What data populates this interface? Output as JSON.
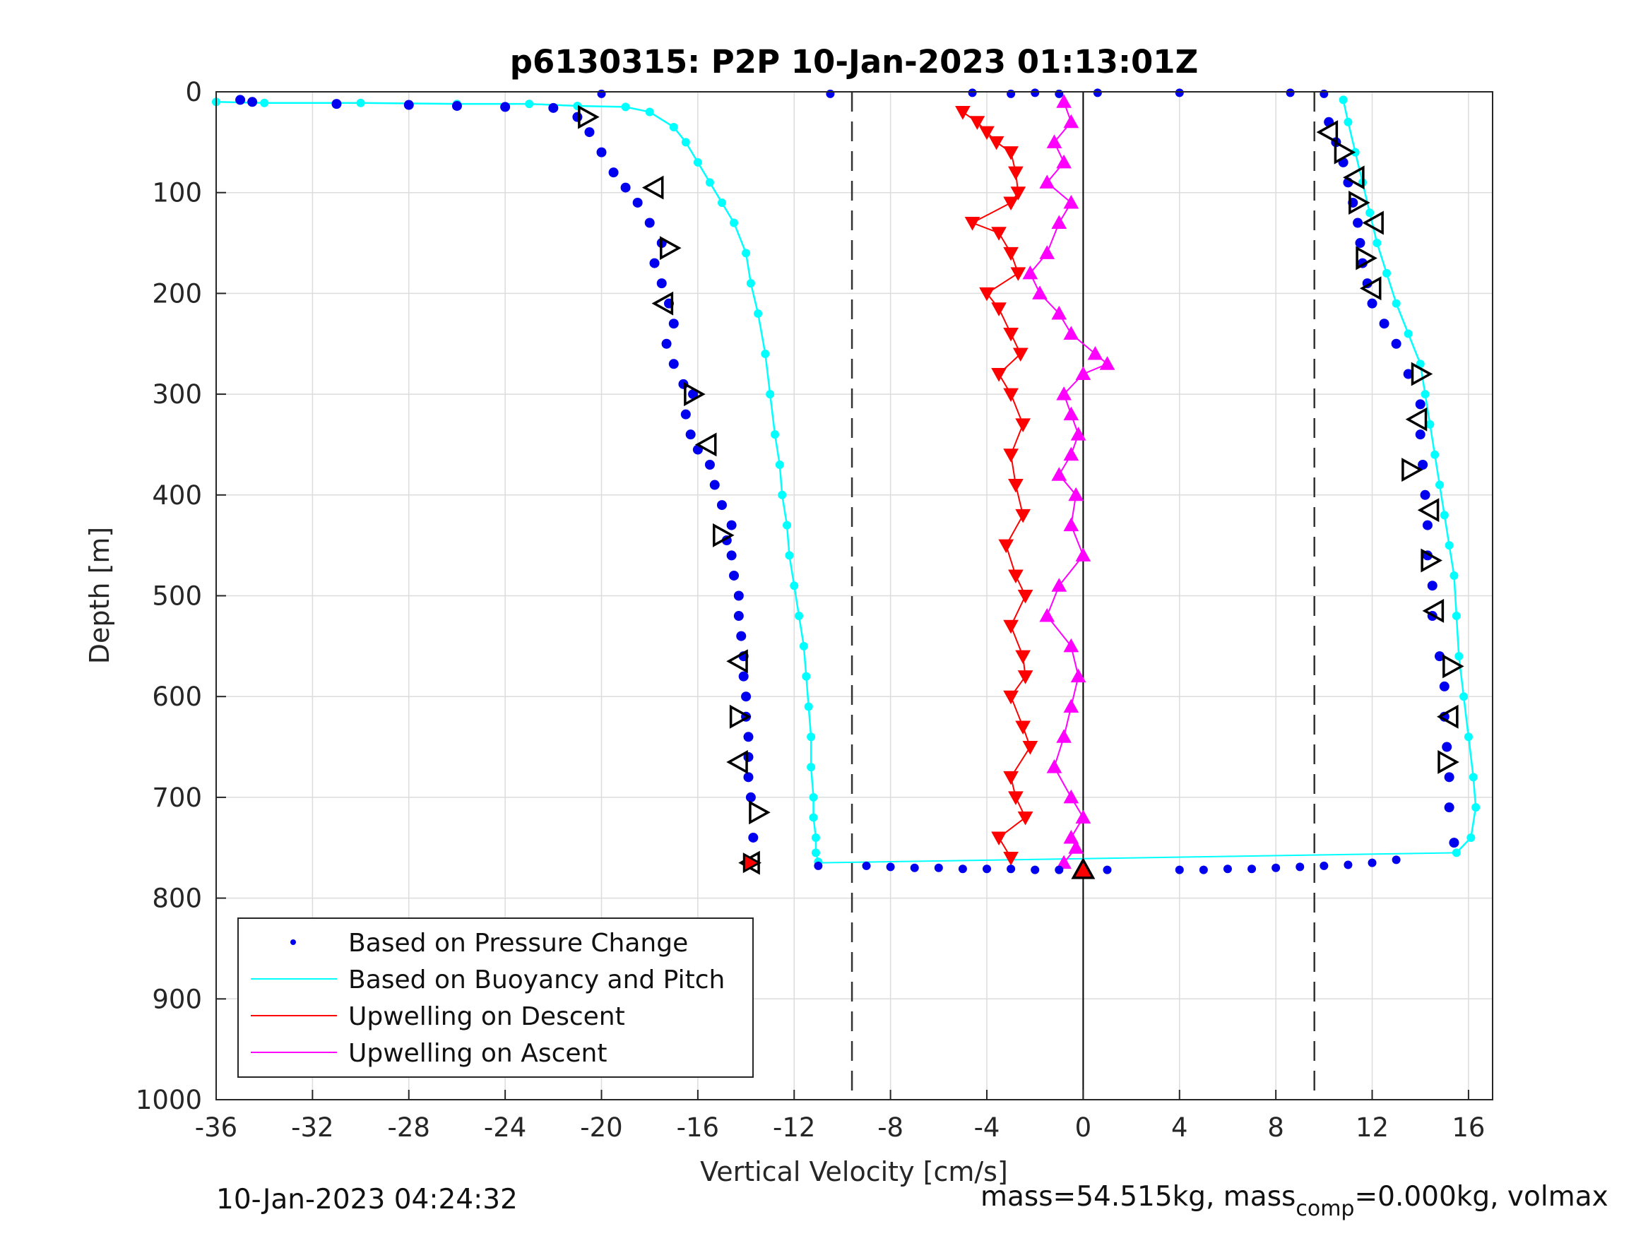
{
  "chart_data": {
    "type": "scatter",
    "title": "p6130315: P2P 10-Jan-2023 01:13:01Z",
    "xlabel": "Vertical Velocity [cm/s]",
    "ylabel": "Depth [m]",
    "xlim": [
      -36,
      17
    ],
    "ylim": [
      0,
      1000
    ],
    "y_reversed": true,
    "x_ticks": [
      "-36",
      "-32",
      "-28",
      "-24",
      "-20",
      "-16",
      "-12",
      "-8",
      "-4",
      "0",
      "4",
      "8",
      "12",
      "16"
    ],
    "y_ticks": [
      "0",
      "100",
      "200",
      "300",
      "400",
      "500",
      "600",
      "700",
      "800",
      "900",
      "1000"
    ],
    "grid": true,
    "legend_position": "bottom-left",
    "reference_lines": {
      "dashed_x": [
        -9.6,
        9.6
      ],
      "solid_x": [
        0
      ]
    },
    "series": [
      {
        "name": "Based on Pressure Change",
        "color": "#0000ee",
        "marker": "dot",
        "descent": {
          "x": [
            -35,
            -34.5,
            -31,
            -28,
            -26,
            -24,
            -22,
            -21,
            -20.5,
            -20,
            -19.5,
            -19,
            -18.5,
            -18,
            -17.5,
            -17.8,
            -17.5,
            -17.2,
            -17,
            -17.3,
            -17,
            -16.6,
            -16.2,
            -16.5,
            -16.3,
            -16,
            -15.5,
            -15.3,
            -15,
            -14.6,
            -14.8,
            -14.6,
            -14.5,
            -14.3,
            -14.3,
            -14.2,
            -14.1,
            -14.1,
            -14,
            -14,
            -13.9,
            -13.9,
            -13.9,
            -13.8,
            -13.7
          ],
          "y": [
            8,
            10,
            12,
            13,
            14,
            15,
            16,
            25,
            40,
            60,
            80,
            95,
            110,
            130,
            150,
            170,
            190,
            210,
            230,
            250,
            270,
            290,
            300,
            320,
            340,
            355,
            370,
            390,
            410,
            430,
            445,
            460,
            480,
            500,
            520,
            540,
            560,
            580,
            600,
            620,
            640,
            660,
            680,
            700,
            740
          ]
        },
        "ascent": {
          "x": [
            10.2,
            10.5,
            10.8,
            11,
            11.2,
            11.4,
            11.5,
            11.6,
            11.8,
            12,
            12.5,
            13,
            13.5,
            14,
            14,
            14.1,
            14.2,
            14.3,
            14.3,
            14.5,
            14.5,
            14.8,
            15,
            15,
            15.1,
            15.2,
            15.2,
            15.4
          ],
          "y": [
            30,
            50,
            70,
            90,
            110,
            130,
            150,
            170,
            190,
            210,
            230,
            250,
            280,
            310,
            340,
            370,
            400,
            430,
            460,
            490,
            520,
            560,
            590,
            620,
            650,
            680,
            710,
            745
          ]
        },
        "bottom": {
          "x": [
            -11,
            -9,
            -8,
            -7,
            -6,
            -5,
            -4,
            -3,
            -2,
            -1,
            0,
            1,
            4,
            5,
            6,
            7,
            8,
            9,
            10,
            11,
            12,
            13
          ],
          "y": [
            768,
            768,
            769,
            770,
            770,
            771,
            771,
            771,
            772,
            772,
            772,
            772,
            772,
            772,
            771,
            771,
            770,
            769,
            768,
            767,
            765,
            762
          ]
        },
        "surface": {
          "x": [
            -20,
            -10.5,
            -4.6,
            -3,
            -2,
            -1,
            0.6,
            4,
            8.6,
            10
          ],
          "y": [
            2,
            2,
            1,
            2,
            1,
            2,
            1,
            1,
            1,
            2
          ]
        }
      },
      {
        "name": "Based on Buoyancy and Pitch",
        "color": "#00ffff",
        "marker": "line+dot",
        "descent": {
          "x": [
            -36,
            -34,
            -30,
            -26,
            -23,
            -21,
            -19,
            -18,
            -17,
            -16.5,
            -16,
            -15.5,
            -15,
            -14.5,
            -14,
            -13.8,
            -13.5,
            -13.2,
            -13,
            -12.8,
            -12.6,
            -12.5,
            -12.3,
            -12.2,
            -12,
            -11.8,
            -11.6,
            -11.5,
            -11.4,
            -11.3,
            -11.3,
            -11.2,
            -11.2,
            -11.1,
            -11.1,
            -11
          ],
          "y": [
            10,
            11,
            11,
            12,
            12,
            14,
            15,
            20,
            35,
            50,
            70,
            90,
            110,
            130,
            160,
            190,
            220,
            260,
            300,
            340,
            370,
            400,
            430,
            460,
            490,
            520,
            550,
            580,
            610,
            640,
            670,
            700,
            720,
            740,
            755,
            764
          ]
        },
        "ascent": {
          "x": [
            10.8,
            11,
            11.3,
            11.6,
            11.9,
            12.2,
            12.6,
            13,
            13.5,
            14,
            14.2,
            14.4,
            14.6,
            14.8,
            15,
            15.2,
            15.4,
            15.5,
            15.6,
            15.8,
            16,
            16.2,
            16.3,
            16.1,
            15.5
          ],
          "y": [
            8,
            30,
            60,
            90,
            120,
            150,
            180,
            210,
            240,
            270,
            300,
            330,
            360,
            390,
            420,
            450,
            480,
            520,
            560,
            600,
            640,
            680,
            710,
            740,
            755
          ]
        },
        "bottom_line": {
          "x": [
            -11,
            15.5
          ],
          "y": [
            765,
            755
          ]
        }
      },
      {
        "name": "Upwelling on Descent",
        "color": "#ff0000",
        "marker": "triangle-down",
        "x": [
          -5,
          -4.4,
          -4,
          -3.6,
          -3,
          -2.8,
          -2.7,
          -3,
          -4.6,
          -3.5,
          -3,
          -2.7,
          -4,
          -3.5,
          -3,
          -2.6,
          -3.5,
          -3,
          -2.5,
          -3,
          -2.8,
          -2.5,
          -3.2,
          -2.8,
          -2.4,
          -3,
          -2.5,
          -2.4,
          -3,
          -2.5,
          -2.2,
          -3,
          -2.8,
          -2.4,
          -3.5,
          -3
        ],
        "y": [
          20,
          30,
          40,
          50,
          60,
          80,
          100,
          110,
          130,
          140,
          160,
          180,
          200,
          215,
          240,
          260,
          280,
          300,
          330,
          360,
          390,
          420,
          450,
          480,
          500,
          530,
          560,
          580,
          600,
          630,
          650,
          680,
          700,
          720,
          740,
          760
        ]
      },
      {
        "name": "Upwelling on Ascent",
        "color": "#ff00ff",
        "marker": "triangle-up",
        "x": [
          -0.8,
          -0.5,
          -1.2,
          -0.8,
          -1.5,
          -0.5,
          -1,
          -1.5,
          -2.2,
          -1.8,
          -1,
          -0.5,
          0.5,
          1,
          0,
          -0.8,
          -0.5,
          -0.2,
          -0.5,
          -1,
          -0.3,
          -0.5,
          0,
          -1,
          -1.5,
          -0.5,
          -0.2,
          -0.5,
          -0.8,
          -1.2,
          -0.5,
          0,
          -0.5,
          -0.3,
          -0.8
        ],
        "y": [
          10,
          30,
          50,
          70,
          90,
          110,
          130,
          160,
          180,
          200,
          220,
          240,
          260,
          270,
          280,
          300,
          320,
          340,
          360,
          380,
          400,
          430,
          460,
          490,
          520,
          550,
          580,
          610,
          640,
          670,
          700,
          720,
          740,
          750,
          765
        ]
      }
    ],
    "triangle_markers": {
      "color": "#000000",
      "left_x": [
        -20.6,
        -17.8,
        -17.2,
        -17.4,
        -16.2,
        -15.6,
        -15,
        -14.3,
        -14.3,
        -14.3,
        -13.5,
        -13.8
      ],
      "left_y": [
        25,
        95,
        155,
        210,
        300,
        350,
        440,
        565,
        620,
        665,
        715,
        765
      ],
      "right_x": [
        10.2,
        10.8,
        11.3,
        11.4,
        12.1,
        11.7,
        12,
        14,
        13.9,
        13.6,
        14.4,
        14.4,
        14.6,
        15.3,
        15.2,
        15.1
      ],
      "right_y": [
        40,
        60,
        85,
        110,
        130,
        165,
        195,
        280,
        325,
        375,
        415,
        465,
        515,
        570,
        620,
        665
      ],
      "bottom": {
        "x": [
          0
        ],
        "y": [
          772
        ]
      }
    }
  },
  "legend": {
    "items": [
      {
        "label": "Based on Pressure Change",
        "color": "#0000ee",
        "style": "dot"
      },
      {
        "label": "Based on Buoyancy and Pitch",
        "color": "#00ffff",
        "style": "line"
      },
      {
        "label": "Upwelling on Descent",
        "color": "#ff0000",
        "style": "line"
      },
      {
        "label": "Upwelling on Ascent",
        "color": "#ff00ff",
        "style": "line"
      }
    ]
  },
  "footer": {
    "timestamp": "10-Jan-2023 04:24:32",
    "mass_text_a": "mass=54.515kg, mass",
    "mass_sub": "comp",
    "mass_text_b": "=0.000kg, volmax"
  }
}
